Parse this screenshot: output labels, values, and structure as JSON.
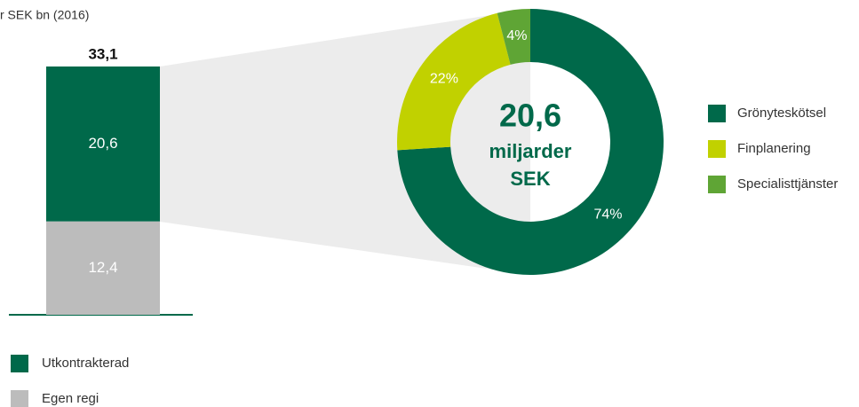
{
  "chart_data": [
    {
      "type": "stacked-bar",
      "subtitle": "r SEK bn (2016)",
      "series": [
        {
          "name": "Utkontrakterad",
          "color": "#00694a",
          "values": [
            20.6
          ],
          "value_labels": [
            "20,6"
          ]
        },
        {
          "name": "Egen regi",
          "color": "#bcbcbc",
          "values": [
            12.4
          ],
          "value_labels": [
            "12,4"
          ]
        }
      ],
      "total": 33.1,
      "total_label": "33,1"
    },
    {
      "type": "donut",
      "center_text": [
        "20,6",
        "miljarder",
        "SEK"
      ],
      "categories": [
        "Grönyteskötsel",
        "Finplanering",
        "Specialisttjänster"
      ],
      "values": [
        74,
        22,
        4
      ],
      "value_labels": [
        "74%",
        "22%",
        "4%"
      ],
      "colors": [
        "#00694a",
        "#c1d100",
        "#5fa535"
      ]
    }
  ]
}
